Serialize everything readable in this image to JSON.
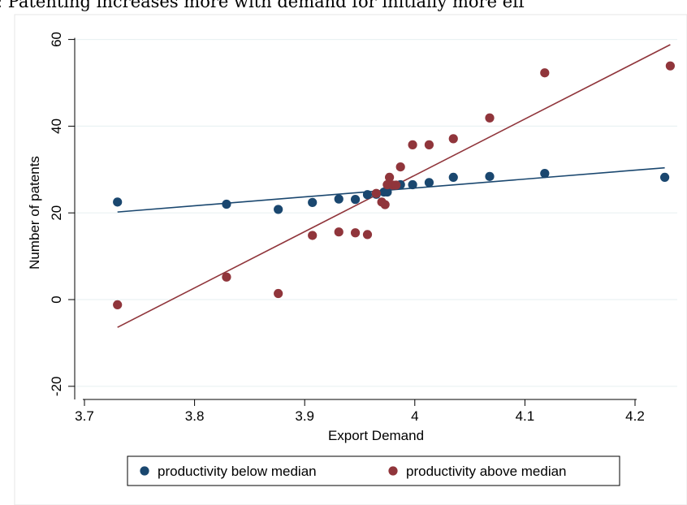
{
  "header": {
    "caption": ": Patenting increases more with demand for initially more eff"
  },
  "chart_data": {
    "type": "scatter",
    "xlabel": "Export Demand",
    "ylabel": "Number of patents",
    "xlim": [
      3.7,
      4.25
    ],
    "ylim": [
      -20,
      60
    ],
    "xticks": [
      3.7,
      3.8,
      3.9,
      4.0,
      4.1,
      4.2
    ],
    "xtick_labels": [
      "3.7",
      "3.8",
      "3.9",
      "4",
      "4.1",
      "4.2"
    ],
    "yticks": [
      -20,
      0,
      20,
      40,
      60
    ],
    "ytick_labels": [
      "-20",
      "0",
      "20",
      "40",
      "60"
    ],
    "grid": "horizontal",
    "legend_position": "bottom",
    "series": [
      {
        "name": "productivity below median",
        "color": "#1a476f",
        "points": [
          [
            3.73,
            22.5
          ],
          [
            3.829,
            22.0
          ],
          [
            3.876,
            20.8
          ],
          [
            3.907,
            22.4
          ],
          [
            3.931,
            23.2
          ],
          [
            3.946,
            23.1
          ],
          [
            3.957,
            24.2
          ],
          [
            3.965,
            24.3
          ],
          [
            3.972,
            24.8
          ],
          [
            3.975,
            24.8
          ],
          [
            3.987,
            26.5
          ],
          [
            3.998,
            26.5
          ],
          [
            4.013,
            27.0
          ],
          [
            4.035,
            28.2
          ],
          [
            4.068,
            28.4
          ],
          [
            4.118,
            29.1
          ],
          [
            4.227,
            28.2
          ]
        ],
        "fit": [
          [
            3.73,
            20.2
          ],
          [
            4.227,
            30.4
          ]
        ]
      },
      {
        "name": "productivity above median",
        "color": "#90353b",
        "points": [
          [
            3.73,
            -1.2
          ],
          [
            3.829,
            5.2
          ],
          [
            3.876,
            1.4
          ],
          [
            3.907,
            14.8
          ],
          [
            3.931,
            15.6
          ],
          [
            3.946,
            15.4
          ],
          [
            3.957,
            15.0
          ],
          [
            3.965,
            24.5
          ],
          [
            3.97,
            22.5
          ],
          [
            3.973,
            21.9
          ],
          [
            3.975,
            26.5
          ],
          [
            3.977,
            28.2
          ],
          [
            3.98,
            26.4
          ],
          [
            3.983,
            26.4
          ],
          [
            3.987,
            30.6
          ],
          [
            3.998,
            35.7
          ],
          [
            4.013,
            35.7
          ],
          [
            4.035,
            37.1
          ],
          [
            4.068,
            41.9
          ],
          [
            4.118,
            52.3
          ],
          [
            4.232,
            53.9
          ]
        ],
        "fit": [
          [
            3.73,
            -6.4
          ],
          [
            4.232,
            58.8
          ]
        ]
      }
    ]
  }
}
